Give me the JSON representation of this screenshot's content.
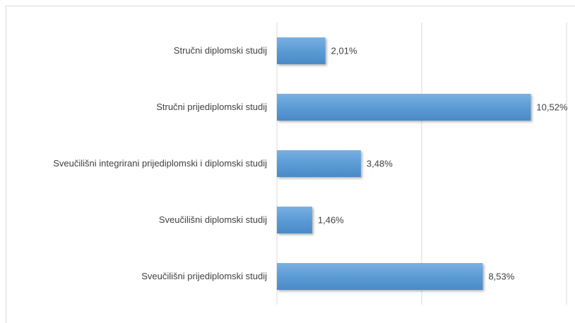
{
  "chart_data": {
    "type": "bar",
    "orientation": "horizontal",
    "categories": [
      "Stručni diplomski studij",
      "Stručni prijediplomski studij",
      "Sveučilišni integrirani prijediplomski i diplomski studij",
      "Sveučilišni diplomski studij",
      "Sveučilišni prijediplomski studij"
    ],
    "values": [
      2.01,
      10.52,
      3.48,
      1.46,
      8.53
    ],
    "value_labels": [
      "2,01%",
      "10,52%",
      "3,48%",
      "1,46%",
      "8,53%"
    ],
    "color": "#5b9bd5",
    "xlim": [
      0,
      12
    ],
    "xticks": [
      0,
      6,
      12
    ],
    "grid": true
  }
}
